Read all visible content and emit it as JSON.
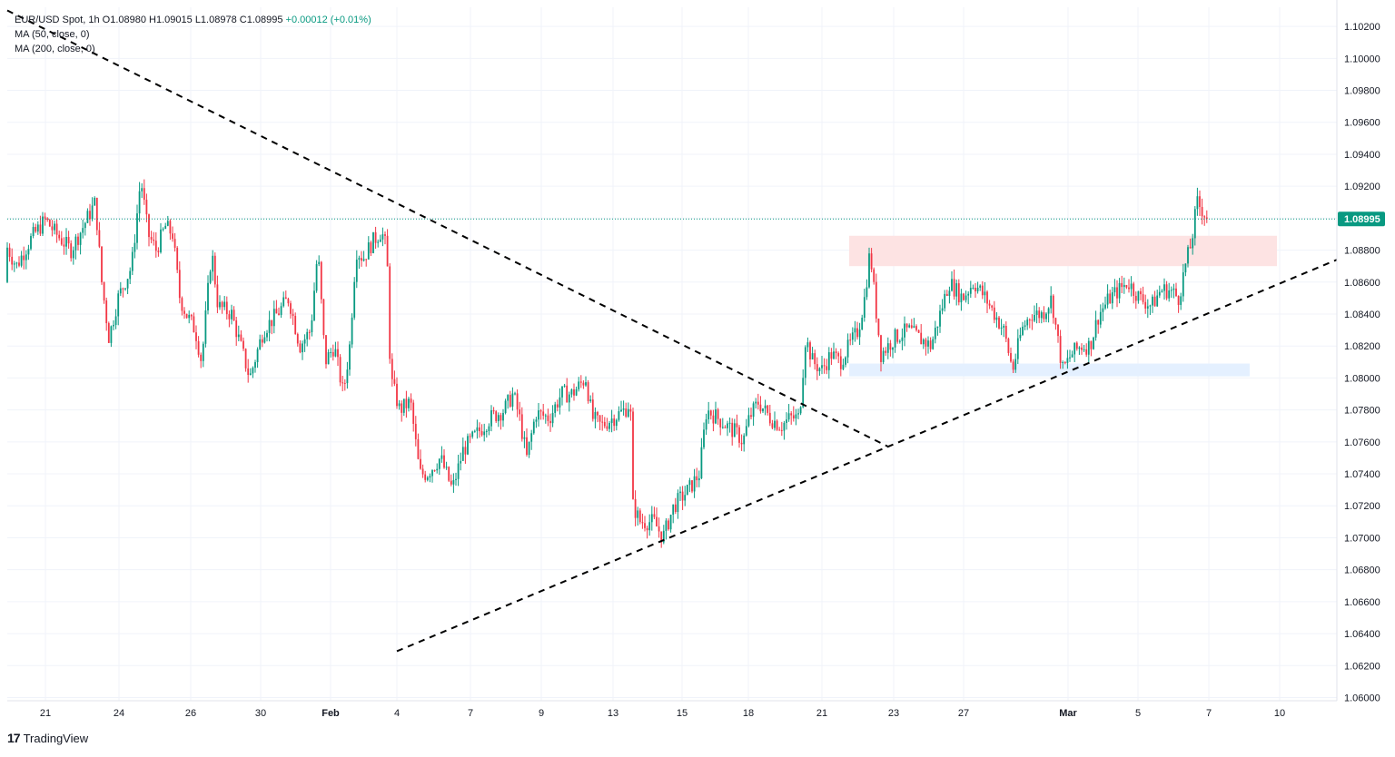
{
  "legend": {
    "symbol": "EUR/USD Spot",
    "interval": "1h",
    "open": "O1.08980",
    "high": "H1.09015",
    "low": "L1.08978",
    "close": "C1.08995",
    "change": "+0.00012 (+0.01%)",
    "ma50": "MA (50, close, 0)",
    "ma200": "MA (200, close, 0)"
  },
  "brand": {
    "logo": "17",
    "name": "TradingView"
  },
  "colors": {
    "up": "#089981",
    "down": "#f23645",
    "last_price_badge": "#089981",
    "resistance_zone": "#fde2e2",
    "support_zone": "#e3efff",
    "trendline": "#000000"
  },
  "chart_data": {
    "type": "candlestick",
    "instrument": "EUR/USD Spot",
    "interval": "1h",
    "last_price": 1.08995,
    "last_price_label": "1.08995",
    "ylim": [
      1.0598,
      1.1032
    ],
    "y_ticks": [
      "1.10200",
      "1.10000",
      "1.09800",
      "1.09600",
      "1.09400",
      "1.09200",
      "1.09000",
      "1.08800",
      "1.08600",
      "1.08400",
      "1.08200",
      "1.08000",
      "1.07800",
      "1.07600",
      "1.07400",
      "1.07200",
      "1.07000",
      "1.06800",
      "1.06600",
      "1.06400",
      "1.06200",
      "1.06000"
    ],
    "x_ticks": [
      "21",
      "24",
      "26",
      "30",
      "Feb",
      "4",
      "7",
      "9",
      "13",
      "15",
      "18",
      "21",
      "23",
      "27",
      "Mar",
      "5",
      "7",
      "10"
    ],
    "bold_x_ticks": [
      "Feb",
      "Mar"
    ],
    "zones": [
      {
        "name": "resistance",
        "from_tick": "21",
        "to_tick": "10",
        "low": 1.087,
        "high": 1.0889
      },
      {
        "name": "support",
        "from_tick": "21",
        "to_tick": "7",
        "low": 1.0801,
        "high": 1.0809
      }
    ],
    "trendlines": [
      {
        "name": "descending",
        "start": {
          "x_tick": "21",
          "y": 1.103
        },
        "end": {
          "x_tick": "23",
          "y": 1.0757
        }
      },
      {
        "name": "ascending",
        "start": {
          "x_tick": "4",
          "y": 1.0629
        },
        "end": {
          "x_tick": "10",
          "y": 1.0874
        }
      }
    ],
    "path": [
      [
        0,
        1.086
      ],
      [
        6,
        1.0884
      ],
      [
        18,
        1.087
      ],
      [
        35,
        1.0888
      ],
      [
        50,
        1.0899
      ],
      [
        62,
        1.089
      ],
      [
        78,
        1.088
      ],
      [
        90,
        1.0893
      ],
      [
        105,
        1.091
      ],
      [
        112,
        1.086
      ],
      [
        120,
        1.0825
      ],
      [
        130,
        1.085
      ],
      [
        145,
        1.087
      ],
      [
        155,
        1.0925
      ],
      [
        163,
        1.089
      ],
      [
        172,
        1.088
      ],
      [
        182,
        1.0895
      ],
      [
        190,
        1.089
      ],
      [
        198,
        1.085
      ],
      [
        205,
        1.084
      ],
      [
        215,
        1.083
      ],
      [
        222,
        1.081
      ],
      [
        233,
        1.088
      ],
      [
        240,
        1.0845
      ],
      [
        255,
        1.084
      ],
      [
        265,
        1.082
      ],
      [
        275,
        1.08
      ],
      [
        290,
        1.083
      ],
      [
        305,
        1.084
      ],
      [
        318,
        1.085
      ],
      [
        330,
        1.082
      ],
      [
        342,
        1.083
      ],
      [
        350,
        1.088
      ],
      [
        358,
        1.081
      ],
      [
        368,
        1.082
      ],
      [
        378,
        1.079
      ],
      [
        385,
        1.082
      ],
      [
        392,
        1.088
      ],
      [
        400,
        1.0875
      ],
      [
        410,
        1.0885
      ],
      [
        420,
        1.0892
      ],
      [
        426,
        1.088
      ],
      [
        430,
        1.08
      ],
      [
        440,
        1.078
      ],
      [
        452,
        1.0785
      ],
      [
        462,
        1.074
      ],
      [
        470,
        1.074
      ],
      [
        485,
        1.075
      ],
      [
        498,
        1.073
      ],
      [
        510,
        1.0755
      ],
      [
        525,
        1.0765
      ],
      [
        540,
        1.0775
      ],
      [
        555,
        1.078
      ],
      [
        565,
        1.079
      ],
      [
        572,
        1.0775
      ],
      [
        580,
        1.075
      ],
      [
        590,
        1.0778
      ],
      [
        605,
        1.0775
      ],
      [
        618,
        1.079
      ],
      [
        630,
        1.079
      ],
      [
        645,
        1.08
      ],
      [
        652,
        1.0775
      ],
      [
        662,
        1.077
      ],
      [
        675,
        1.0775
      ],
      [
        688,
        1.078
      ],
      [
        694,
        1.0785
      ],
      [
        697,
        1.072
      ],
      [
        705,
        1.071
      ],
      [
        720,
        1.071
      ],
      [
        730,
        1.07
      ],
      [
        742,
        1.072
      ],
      [
        758,
        1.073
      ],
      [
        770,
        1.074
      ],
      [
        778,
        1.078
      ],
      [
        790,
        1.0775
      ],
      [
        800,
        1.077
      ],
      [
        812,
        1.0765
      ],
      [
        818,
        1.076
      ],
      [
        825,
        1.0775
      ],
      [
        835,
        1.0785
      ],
      [
        848,
        1.0775
      ],
      [
        860,
        1.077
      ],
      [
        870,
        1.0775
      ],
      [
        880,
        1.0775
      ],
      [
        887,
        1.0825
      ],
      [
        895,
        1.081
      ],
      [
        905,
        1.0805
      ],
      [
        915,
        1.0815
      ],
      [
        925,
        1.081
      ],
      [
        935,
        1.082
      ],
      [
        945,
        1.083
      ],
      [
        952,
        1.085
      ],
      [
        958,
        1.088
      ],
      [
        964,
        1.0845
      ],
      [
        970,
        1.0815
      ],
      [
        985,
        1.0825
      ],
      [
        1000,
        1.083
      ],
      [
        1012,
        1.0825
      ],
      [
        1025,
        1.082
      ],
      [
        1035,
        1.084
      ],
      [
        1045,
        1.086
      ],
      [
        1060,
        1.085
      ],
      [
        1072,
        1.086
      ],
      [
        1085,
        1.085
      ],
      [
        1095,
        1.084
      ],
      [
        1105,
        1.083
      ],
      [
        1115,
        1.0805
      ],
      [
        1125,
        1.083
      ],
      [
        1135,
        1.084
      ],
      [
        1148,
        1.084
      ],
      [
        1158,
        1.085
      ],
      [
        1163,
        1.083
      ],
      [
        1170,
        1.0805
      ],
      [
        1180,
        1.0815
      ],
      [
        1190,
        1.082
      ],
      [
        1200,
        1.082
      ],
      [
        1210,
        1.084
      ],
      [
        1222,
        1.085
      ],
      [
        1232,
        1.0855
      ],
      [
        1242,
        1.086
      ],
      [
        1255,
        1.085
      ],
      [
        1268,
        1.0845
      ],
      [
        1278,
        1.0855
      ],
      [
        1288,
        1.0855
      ],
      [
        1298,
        1.085
      ],
      [
        1305,
        1.087
      ],
      [
        1312,
        1.0885
      ],
      [
        1318,
        1.091
      ],
      [
        1324,
        1.0905
      ],
      [
        1330,
        1.0899
      ]
    ]
  }
}
